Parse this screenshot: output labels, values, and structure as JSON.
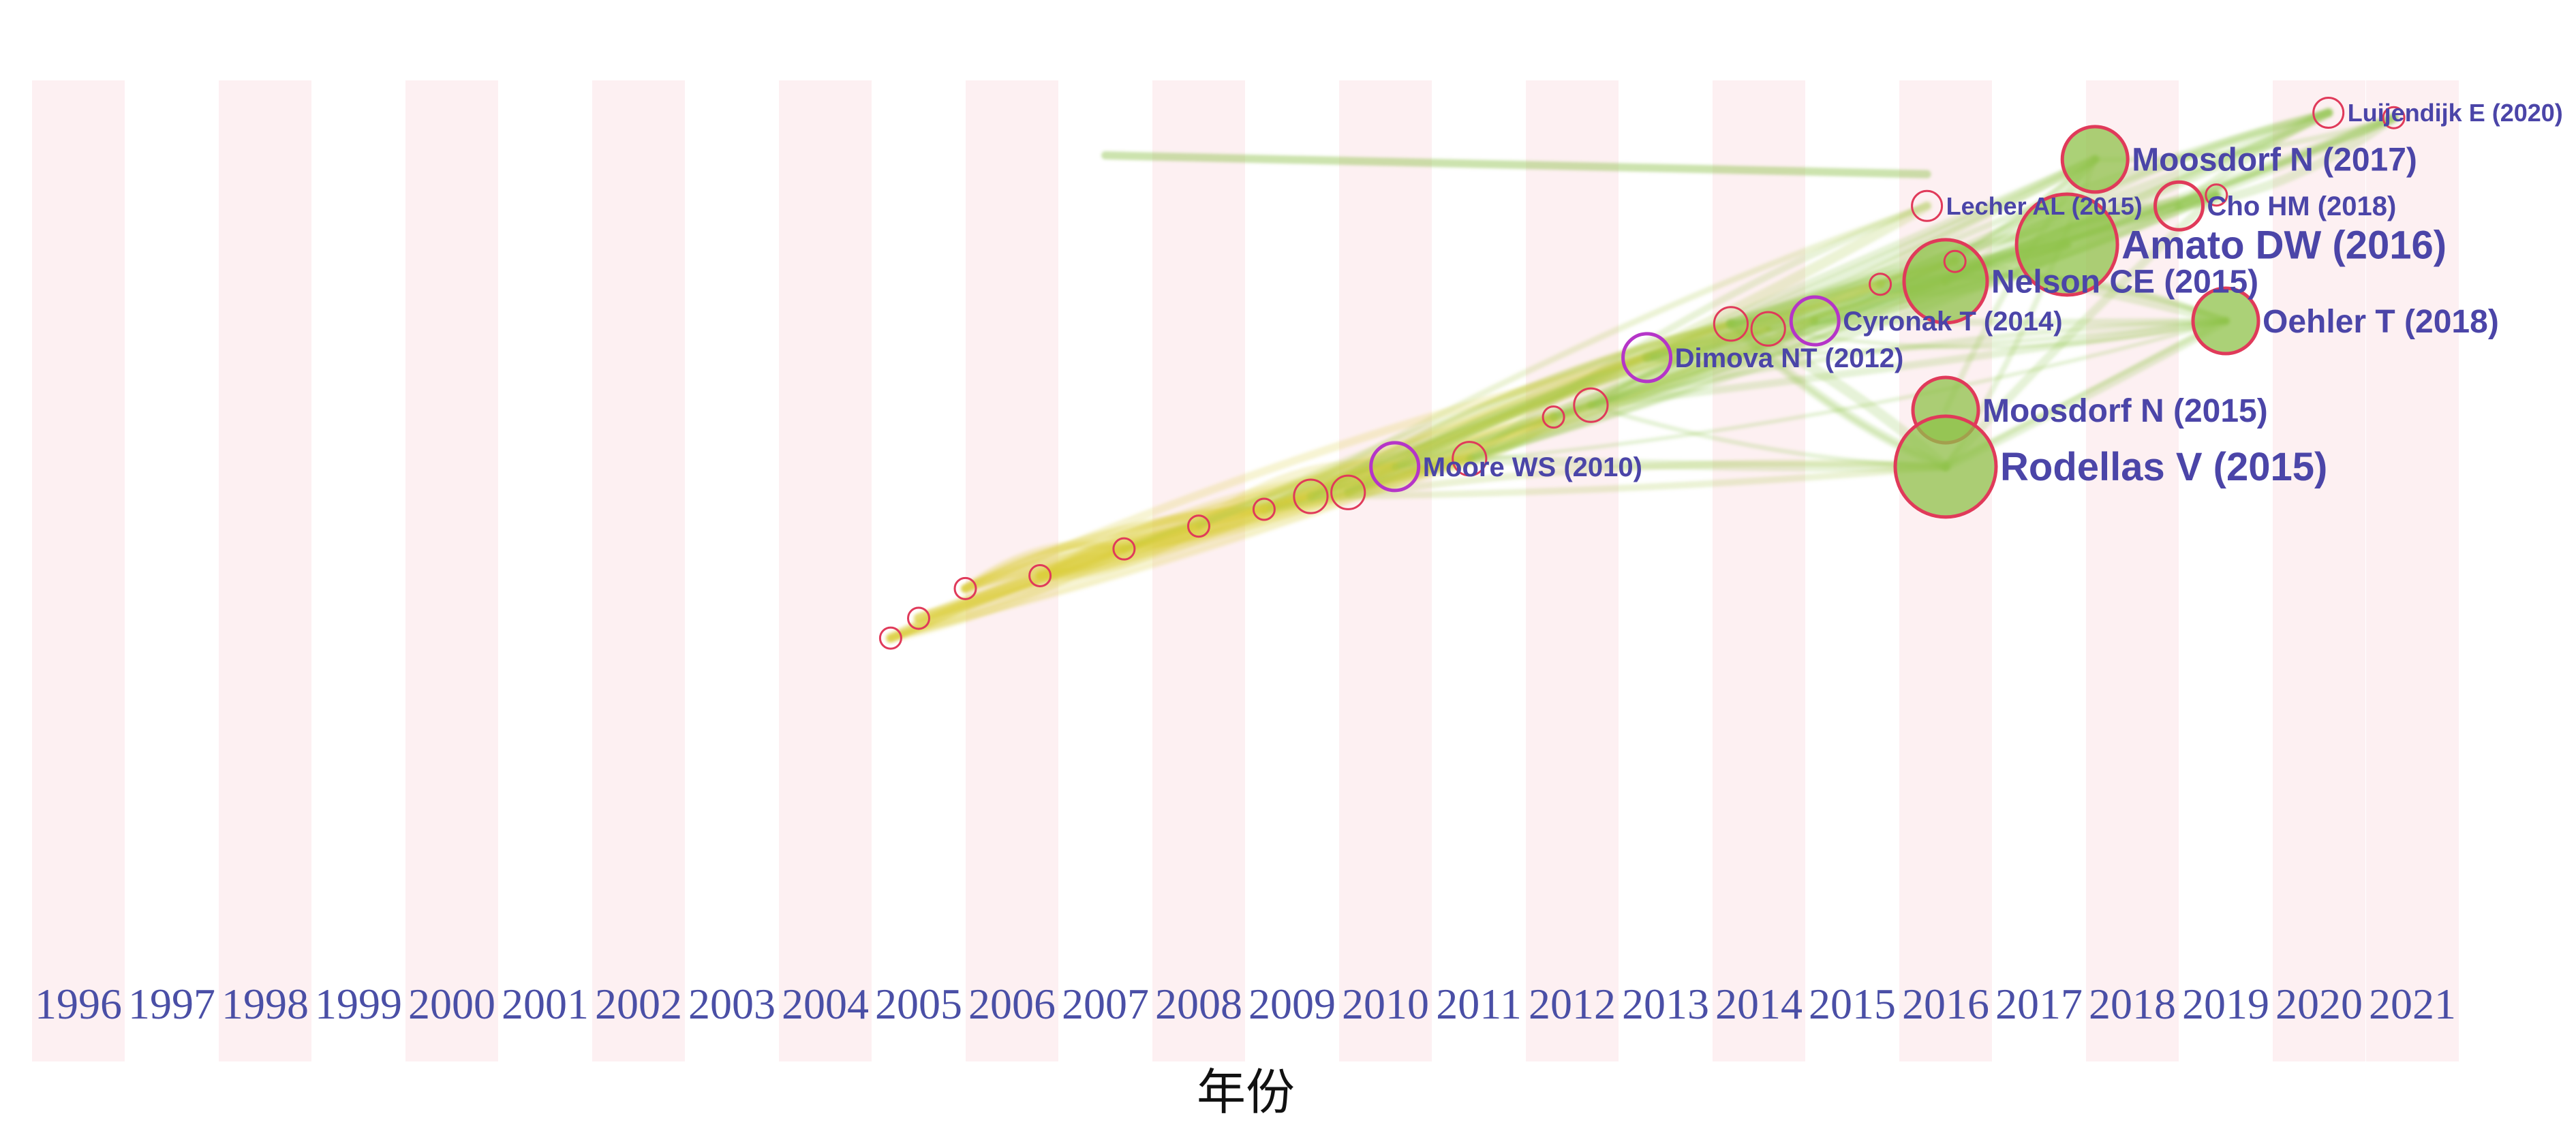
{
  "chart_data": {
    "type": "scatter",
    "title": "",
    "xlabel": "年份",
    "ylabel": "",
    "x_ticks": [
      "1996",
      "1997",
      "1998",
      "1999",
      "2000",
      "2001",
      "2002",
      "2003",
      "2004",
      "2005",
      "2006",
      "2007",
      "2008",
      "2009",
      "2010",
      "2011",
      "2012",
      "2013",
      "2014",
      "2015",
      "2016",
      "2017",
      "2018",
      "2019",
      "2020",
      "2021"
    ],
    "xlim": [
      1996,
      2021
    ],
    "grid": "alternating year bands",
    "colors": {
      "band": "#fdf0f2",
      "early_links": "#dccf3a",
      "late_links": "#8fc24a",
      "node_ring": "#e03a5a",
      "highlight_ring": "#b535c8",
      "label": "#4b45a8",
      "axis_text": "#4a4fa6"
    },
    "nodes": [
      {
        "label": "Luijendijk E (2020)",
        "x": 2020.1,
        "y": 0.955,
        "size": 1,
        "labeled": true
      },
      {
        "label": "Moosdorf N (2017)",
        "x": 2017.6,
        "y": 0.908,
        "size": 3,
        "labeled": true
      },
      {
        "label": "Lecher AL (2015)",
        "x": 2015.8,
        "y": 0.861,
        "size": 1,
        "labeled": true
      },
      {
        "label": "Cho HM (2018)",
        "x": 2018.5,
        "y": 0.861,
        "size": 2,
        "labeled": true
      },
      {
        "label": "Amato DW (2016)",
        "x": 2017.3,
        "y": 0.822,
        "size": 5,
        "labeled": true
      },
      {
        "label": "Nelson CE (2015)",
        "x": 2016.0,
        "y": 0.785,
        "size": 4,
        "labeled": true
      },
      {
        "label": "Cyronak T (2014)",
        "x": 2014.6,
        "y": 0.745,
        "size": 2,
        "labeled": true
      },
      {
        "label": "Oehler T (2018)",
        "x": 2019.0,
        "y": 0.745,
        "size": 3,
        "labeled": true
      },
      {
        "label": "Dimova NT (2012)",
        "x": 2012.8,
        "y": 0.708,
        "size": 2,
        "labeled": true
      },
      {
        "label": "Moosdorf N (2015)",
        "x": 2016.0,
        "y": 0.655,
        "size": 3,
        "labeled": true
      },
      {
        "label": "Moore WS (2010)",
        "x": 2010.1,
        "y": 0.598,
        "size": 2,
        "labeled": true
      },
      {
        "label": "Rodellas V (2015)",
        "x": 2016.0,
        "y": 0.598,
        "size": 5,
        "labeled": true
      },
      {
        "label": "",
        "x": 2005.0,
        "y": 0.445,
        "size": 0.5,
        "labeled": false
      },
      {
        "label": "",
        "x": 2004.7,
        "y": 0.425,
        "size": 0.5,
        "labeled": false
      },
      {
        "label": "",
        "x": 2005.5,
        "y": 0.475,
        "size": 0.5,
        "labeled": false
      },
      {
        "label": "",
        "x": 2006.3,
        "y": 0.488,
        "size": 0.5,
        "labeled": false
      },
      {
        "label": "",
        "x": 2007.2,
        "y": 0.515,
        "size": 0.5,
        "labeled": false
      },
      {
        "label": "",
        "x": 2008.0,
        "y": 0.538,
        "size": 0.5,
        "labeled": false
      },
      {
        "label": "",
        "x": 2008.7,
        "y": 0.555,
        "size": 0.5,
        "labeled": false
      },
      {
        "label": "",
        "x": 2009.2,
        "y": 0.568,
        "size": 1.2,
        "labeled": false
      },
      {
        "label": "",
        "x": 2009.6,
        "y": 0.572,
        "size": 1.2,
        "labeled": false
      },
      {
        "label": "",
        "x": 2010.9,
        "y": 0.606,
        "size": 1.2,
        "labeled": false
      },
      {
        "label": "",
        "x": 2011.8,
        "y": 0.648,
        "size": 0.5,
        "labeled": false
      },
      {
        "label": "",
        "x": 2012.2,
        "y": 0.66,
        "size": 1.2,
        "labeled": false
      },
      {
        "label": "",
        "x": 2013.7,
        "y": 0.742,
        "size": 1.2,
        "labeled": false
      },
      {
        "label": "",
        "x": 2014.1,
        "y": 0.737,
        "size": 1.2,
        "labeled": false
      },
      {
        "label": "",
        "x": 2015.3,
        "y": 0.782,
        "size": 0.5,
        "labeled": false
      },
      {
        "label": "",
        "x": 2016.1,
        "y": 0.805,
        "size": 0.5,
        "labeled": false
      },
      {
        "label": "",
        "x": 2018.9,
        "y": 0.872,
        "size": 0.5,
        "labeled": false
      },
      {
        "label": "",
        "x": 2020.8,
        "y": 0.95,
        "size": 0.5,
        "labeled": false
      }
    ]
  }
}
